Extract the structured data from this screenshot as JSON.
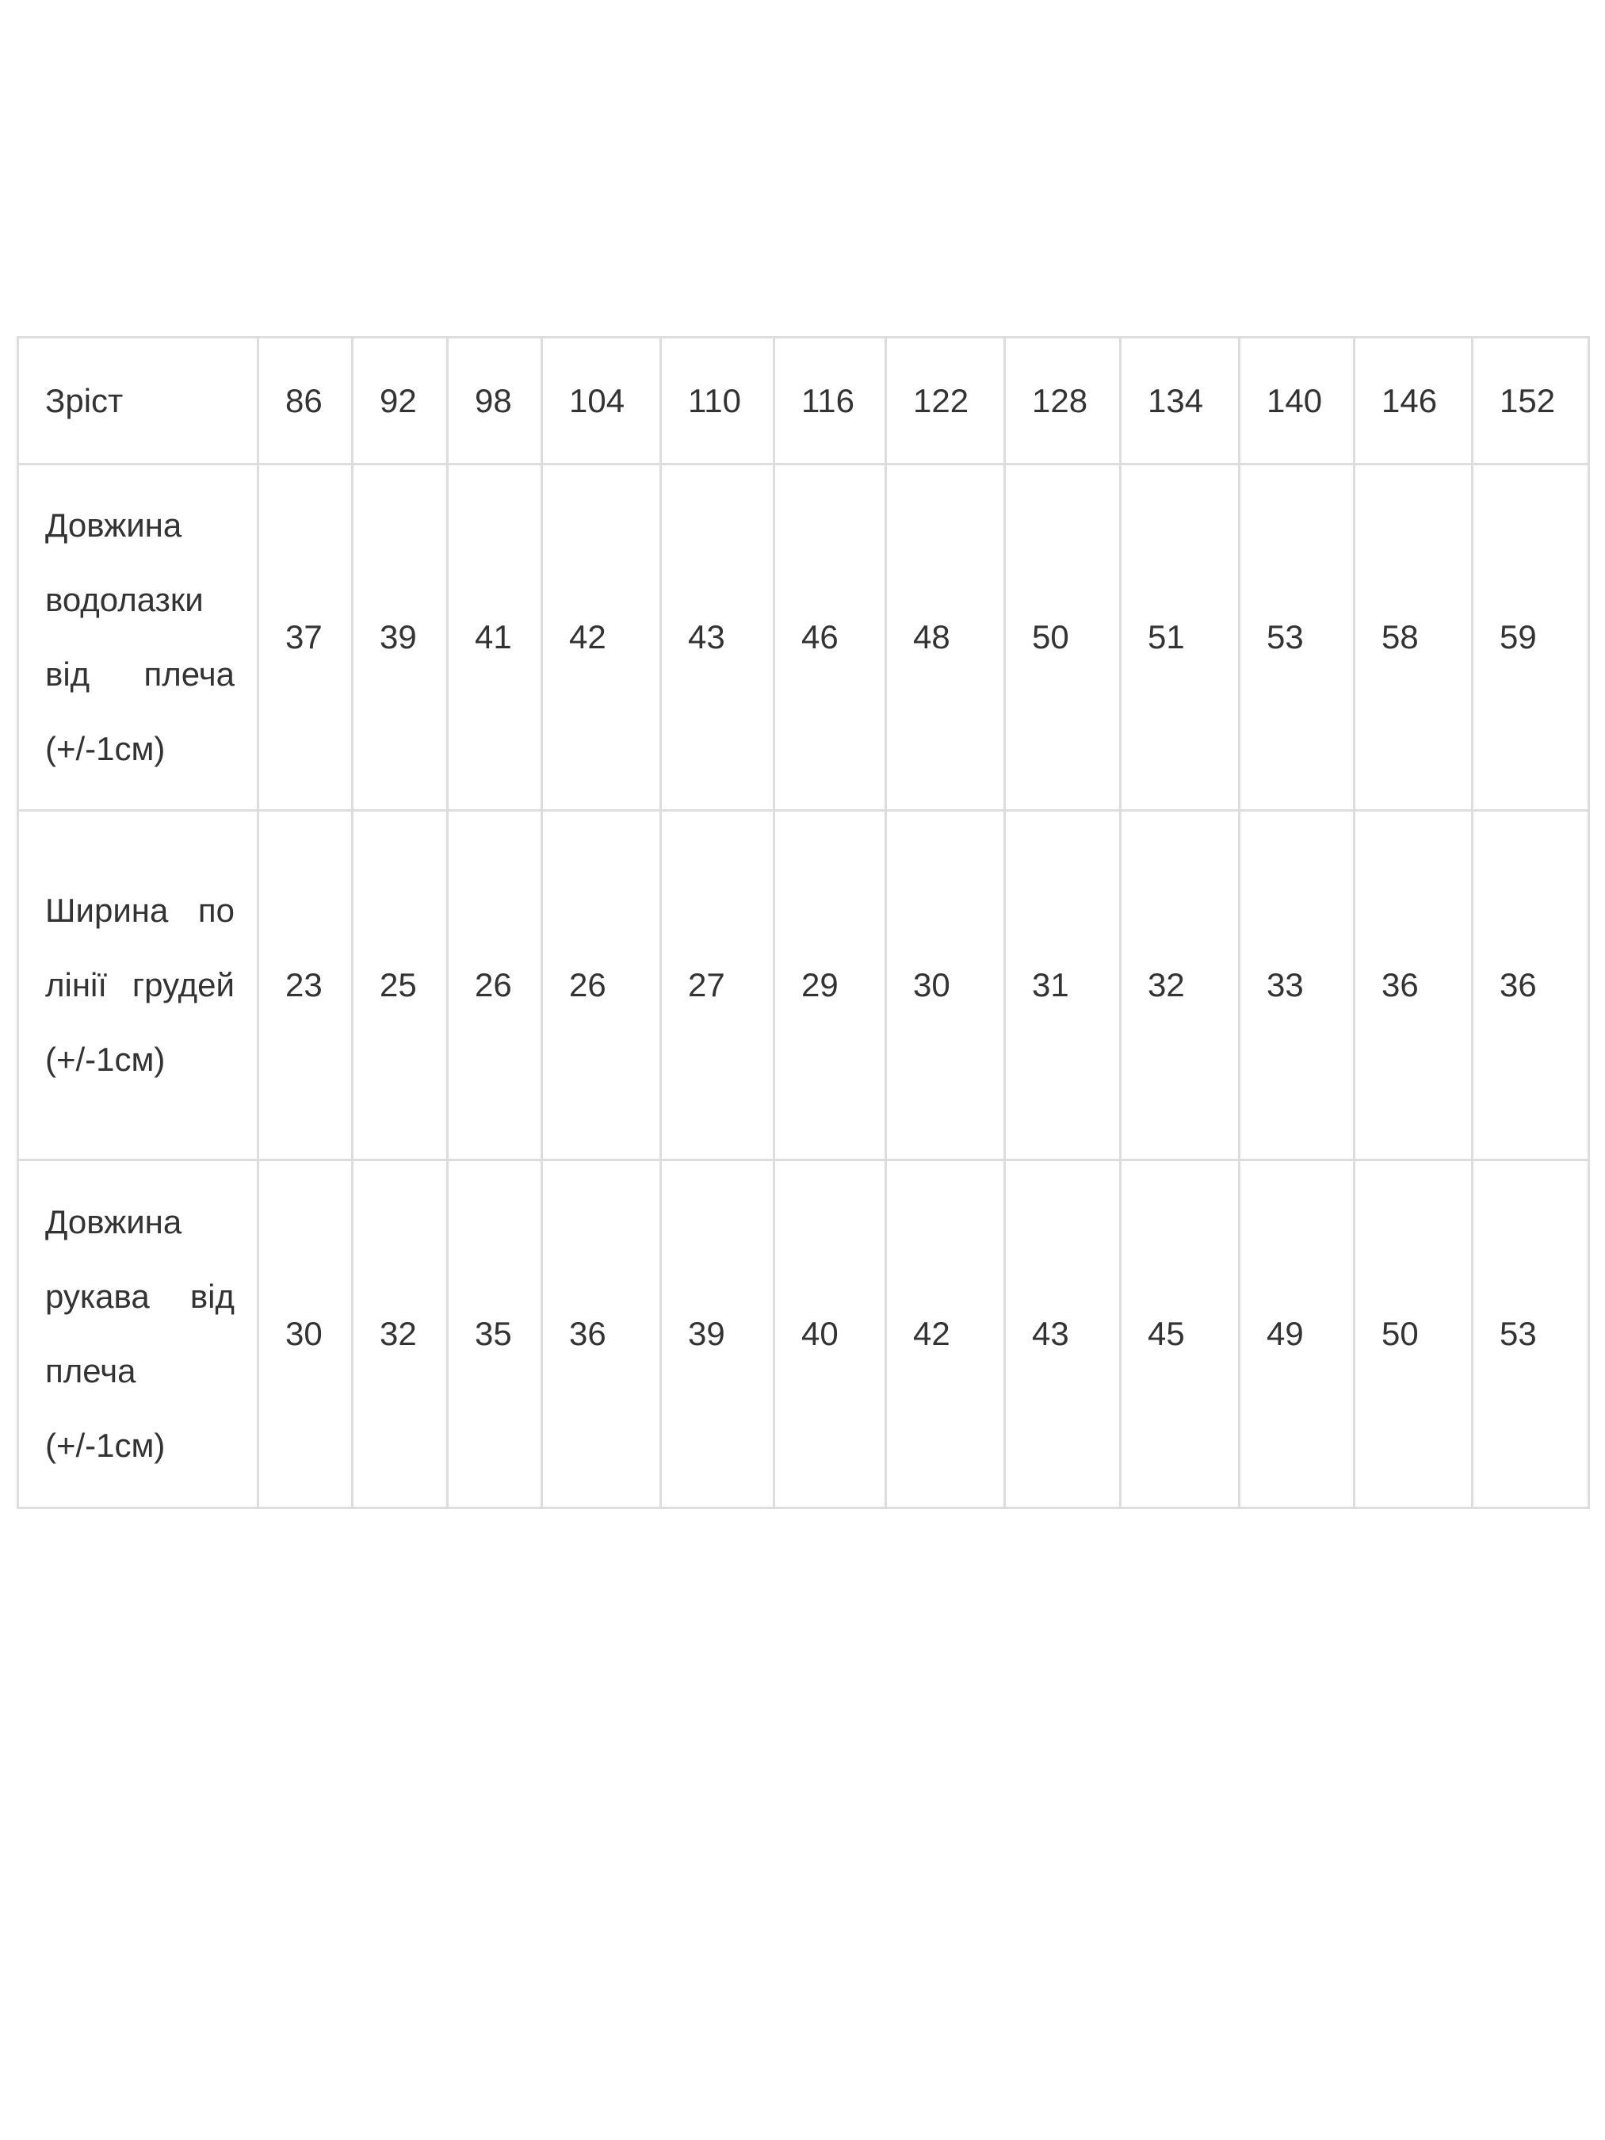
{
  "table": {
    "header": {
      "label": "Зріст",
      "values": [
        "86",
        "92",
        "98",
        "104",
        "110",
        "116",
        "122",
        "128",
        "134",
        "140",
        "146",
        "152"
      ]
    },
    "rows": [
      {
        "label": "Довжина водолазки від плеча (+/-1см)",
        "values": [
          "37",
          "39",
          "41",
          "42",
          "43",
          "46",
          "48",
          "50",
          "51",
          "53",
          "58",
          "59"
        ]
      },
      {
        "label": "Ширина по лінії грудей (+/-1см)",
        "values": [
          "23",
          "25",
          "26",
          "26",
          "27",
          "29",
          "30",
          "31",
          "32",
          "33",
          "36",
          "36"
        ]
      },
      {
        "label": "Довжина рукава від плеча (+/-1см)",
        "values": [
          "30",
          "32",
          "35",
          "36",
          "39",
          "40",
          "42",
          "43",
          "45",
          "49",
          "50",
          "53"
        ]
      }
    ]
  }
}
